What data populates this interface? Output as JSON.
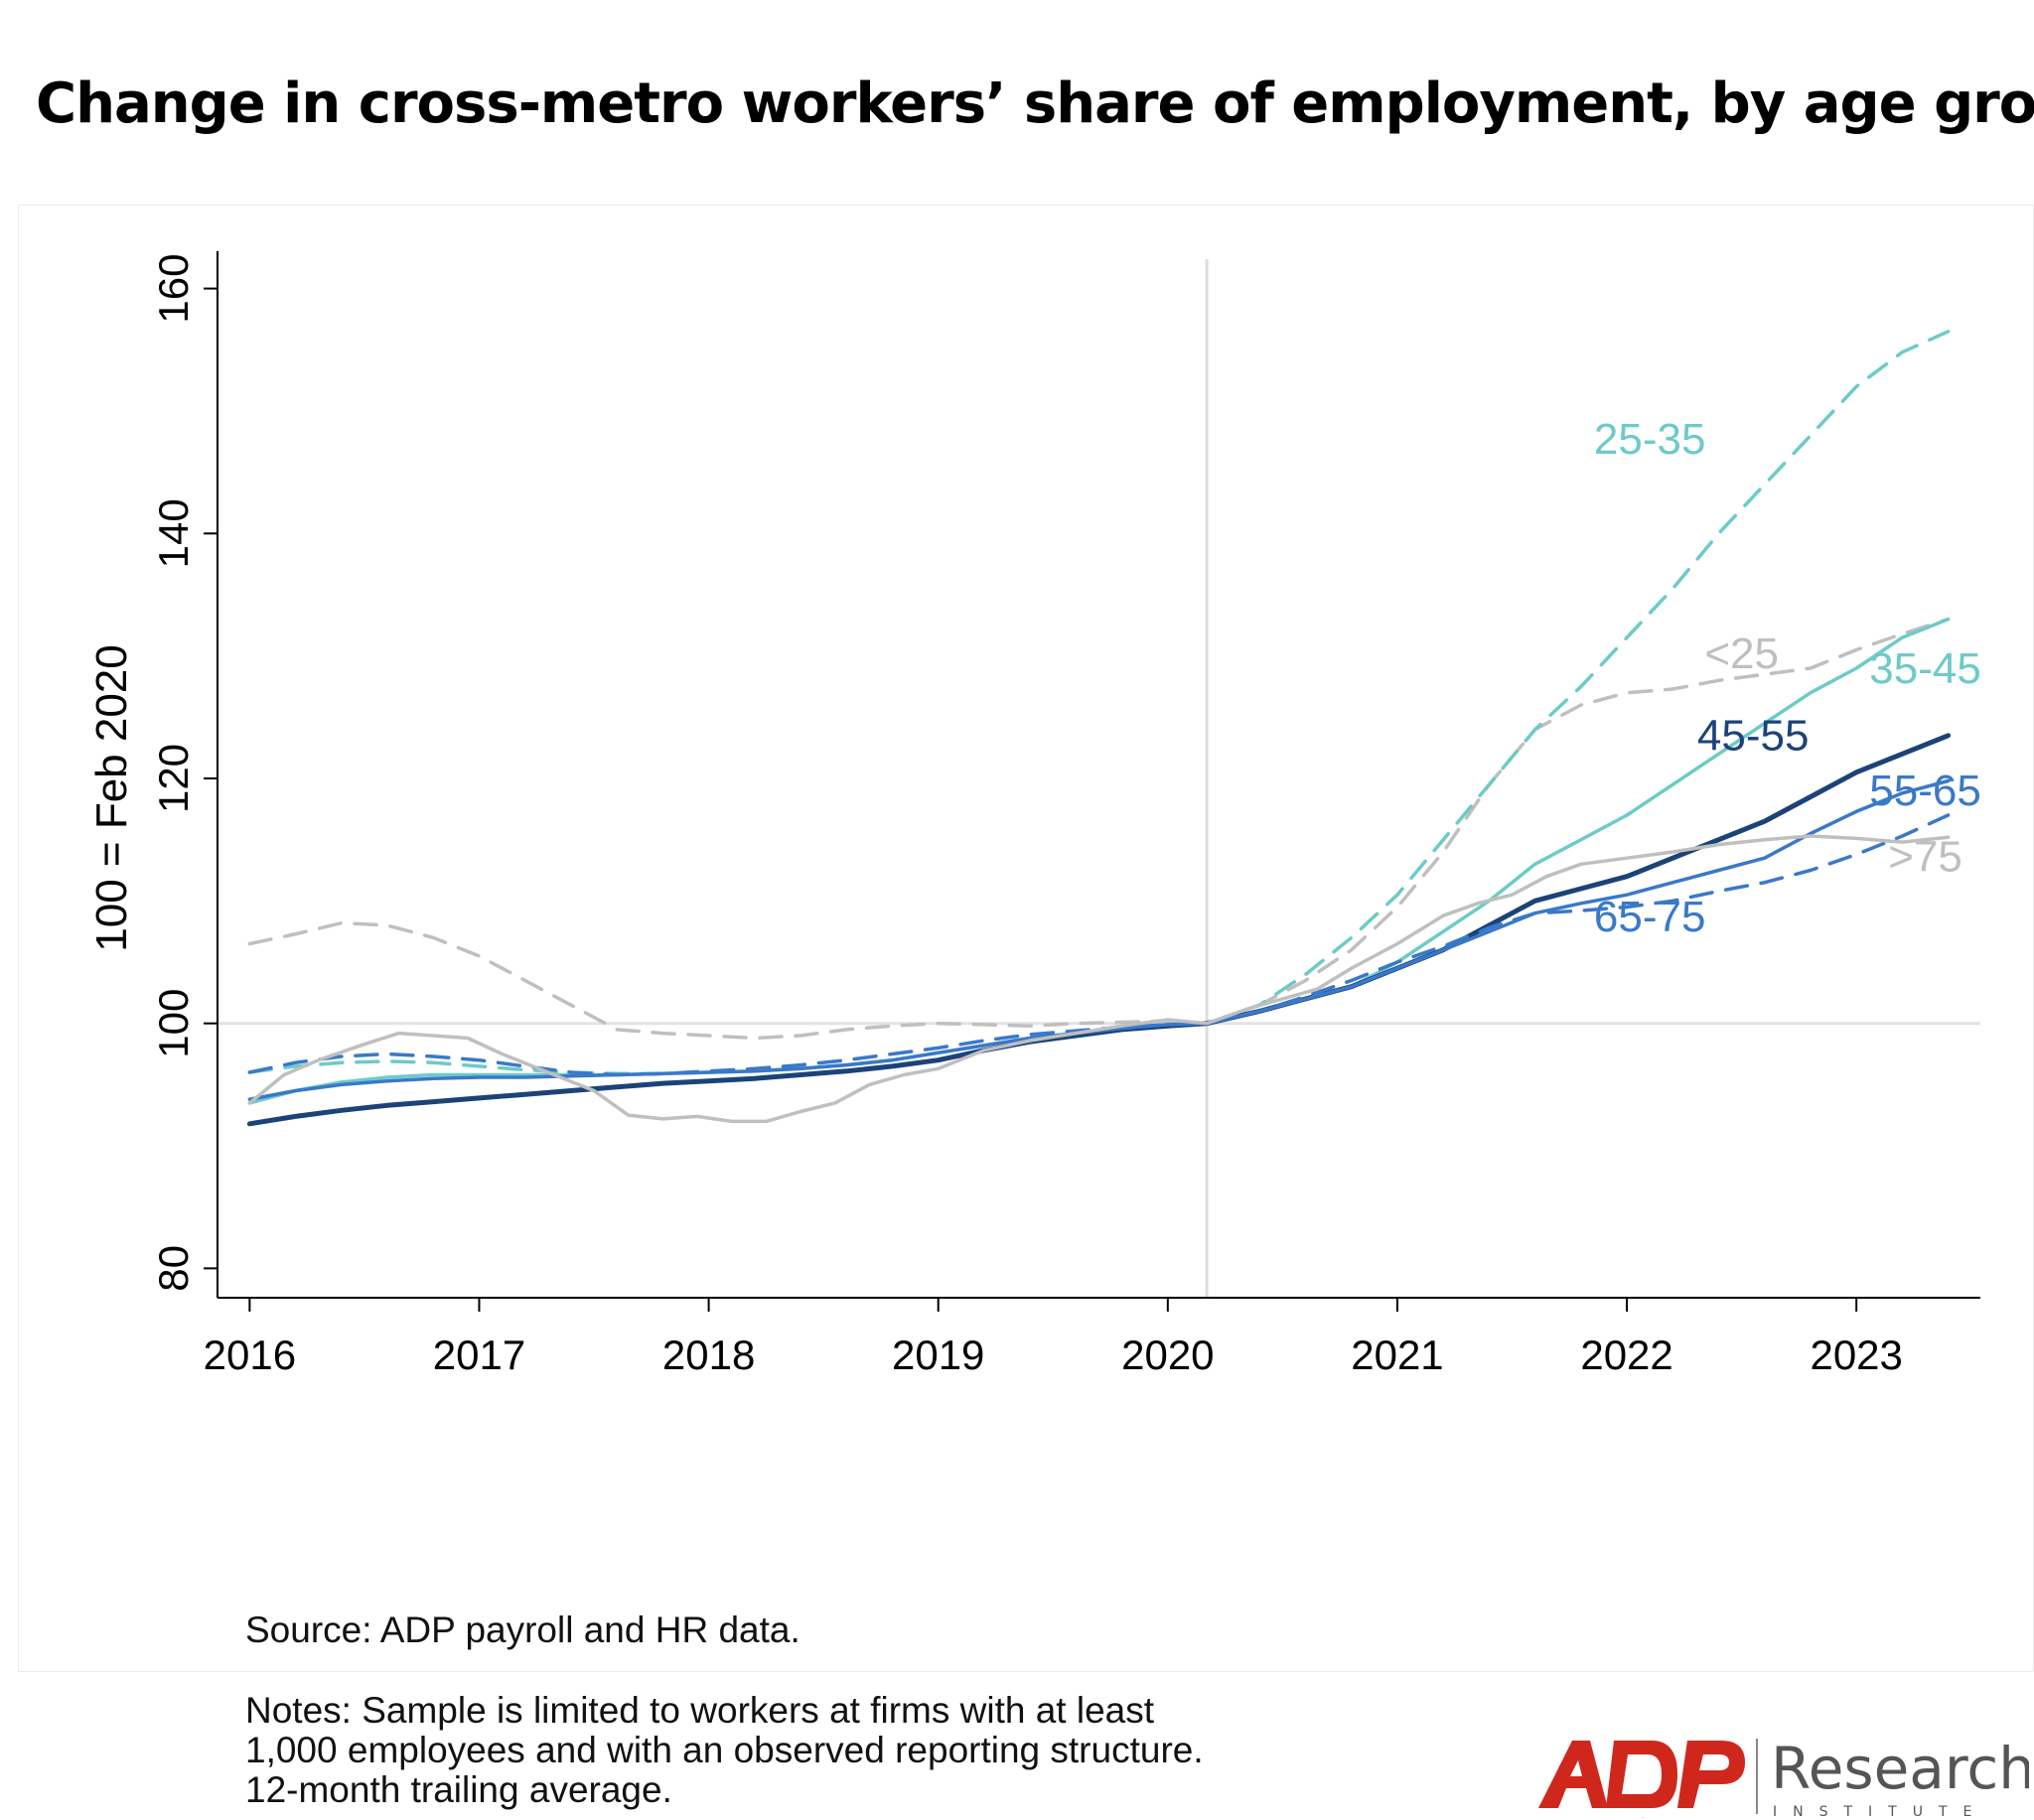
{
  "title": "Change in cross-metro workers’ share of employment, by age group",
  "chart_data": {
    "type": "line",
    "ylabel": "100 = Feb 2020",
    "xlabel": "",
    "xlim": [
      2015.86,
      2023.54
    ],
    "ylim": [
      77.6,
      162.4
    ],
    "xticks": [
      2016,
      2017,
      2018,
      2019,
      2020,
      2021,
      2022,
      2023
    ],
    "xtick_labels": [
      "2016",
      "2017",
      "2018",
      "2019",
      "2020",
      "2021",
      "2022",
      "2023"
    ],
    "yticks": [
      80,
      100,
      120,
      140,
      160
    ],
    "ytick_labels": [
      "80",
      "100",
      "120",
      "140",
      "160"
    ],
    "reference_lines": {
      "vertical_x": 2020.17,
      "horizontal_y": 100
    },
    "series": [
      {
        "name": "<25",
        "label": "<25",
        "color": "#BFBFBF",
        "dash": true,
        "label_x": 2022.5,
        "label_y": 129.0,
        "x": [
          2016.0,
          2016.2,
          2016.4,
          2016.6,
          2016.8,
          2017.0,
          2017.2,
          2017.4,
          2017.6,
          2017.8,
          2018.0,
          2018.2,
          2018.4,
          2018.6,
          2018.8,
          2019.0,
          2019.2,
          2019.4,
          2019.6,
          2019.8,
          2020.0,
          2020.17,
          2020.4,
          2020.6,
          2020.8,
          2021.0,
          2021.2,
          2021.4,
          2021.6,
          2021.8,
          2022.0,
          2022.2,
          2022.4,
          2022.6,
          2022.8,
          2023.0,
          2023.2,
          2023.4
        ],
        "y": [
          106.5,
          107.3,
          108.2,
          108.0,
          107.0,
          105.5,
          103.5,
          101.5,
          99.5,
          99.2,
          99.0,
          98.8,
          99.0,
          99.5,
          99.8,
          100.0,
          99.9,
          99.8,
          100.0,
          100.1,
          100.2,
          100.0,
          101.5,
          103.5,
          106.0,
          109.5,
          114.0,
          119.5,
          124.0,
          126.0,
          127.0,
          127.3,
          128.0,
          128.5,
          129.0,
          130.5,
          131.8,
          133.0
        ]
      },
      {
        "name": "25-35",
        "label": "25-35",
        "color": "#6CCBC8",
        "dash": true,
        "label_x": 2022.1,
        "label_y": 146.5,
        "x": [
          2016.0,
          2016.2,
          2016.4,
          2016.6,
          2016.8,
          2017.0,
          2017.2,
          2017.4,
          2017.6,
          2017.8,
          2018.0,
          2018.2,
          2018.4,
          2018.6,
          2018.8,
          2019.0,
          2019.2,
          2019.4,
          2019.6,
          2019.8,
          2020.0,
          2020.17,
          2020.4,
          2020.6,
          2020.8,
          2021.0,
          2021.2,
          2021.4,
          2021.6,
          2021.8,
          2022.0,
          2022.2,
          2022.4,
          2022.6,
          2022.8,
          2023.0,
          2023.2,
          2023.4
        ],
        "y": [
          96.0,
          96.5,
          96.8,
          96.9,
          96.8,
          96.5,
          96.2,
          96.0,
          95.9,
          95.9,
          96.0,
          96.1,
          96.3,
          96.6,
          97.0,
          97.6,
          98.2,
          98.8,
          99.2,
          99.6,
          99.9,
          100.0,
          101.5,
          104.0,
          107.0,
          110.5,
          115.0,
          119.5,
          124.0,
          127.5,
          131.5,
          135.5,
          140.0,
          144.0,
          148.0,
          152.0,
          154.8,
          156.5
        ]
      },
      {
        "name": "35-45",
        "label": "35-45",
        "color": "#6CCBC8",
        "dash": false,
        "label_x": 2023.3,
        "label_y": 127.8,
        "x": [
          2016.0,
          2016.2,
          2016.4,
          2016.6,
          2016.8,
          2017.0,
          2017.2,
          2017.4,
          2017.6,
          2017.8,
          2018.0,
          2018.2,
          2018.4,
          2018.6,
          2018.8,
          2019.0,
          2019.2,
          2019.4,
          2019.6,
          2019.8,
          2020.0,
          2020.17,
          2020.4,
          2020.6,
          2020.8,
          2021.0,
          2021.2,
          2021.4,
          2021.6,
          2021.8,
          2022.0,
          2022.2,
          2022.4,
          2022.6,
          2022.8,
          2023.0,
          2023.2,
          2023.4
        ],
        "y": [
          93.5,
          94.5,
          95.2,
          95.6,
          95.8,
          95.8,
          95.8,
          95.8,
          95.8,
          95.9,
          96.0,
          96.1,
          96.3,
          96.6,
          97.0,
          97.6,
          98.2,
          98.8,
          99.2,
          99.6,
          99.9,
          100.0,
          101.0,
          102.0,
          103.0,
          105.0,
          107.5,
          110.0,
          113.0,
          115.0,
          117.0,
          119.5,
          122.0,
          124.5,
          127.0,
          129.0,
          131.5,
          133.0
        ]
      },
      {
        "name": "45-55",
        "label": "45-55",
        "color": "#1B4378",
        "dash": false,
        "label_x": 2022.55,
        "label_y": 122.3,
        "x": [
          2016.0,
          2016.2,
          2016.4,
          2016.6,
          2016.8,
          2017.0,
          2017.2,
          2017.4,
          2017.6,
          2017.8,
          2018.0,
          2018.2,
          2018.4,
          2018.6,
          2018.8,
          2019.0,
          2019.2,
          2019.4,
          2019.6,
          2019.8,
          2020.0,
          2020.17,
          2020.4,
          2020.6,
          2020.8,
          2021.0,
          2021.2,
          2021.4,
          2021.6,
          2021.8,
          2022.0,
          2022.2,
          2022.4,
          2022.6,
          2022.8,
          2023.0,
          2023.2,
          2023.4
        ],
        "y": [
          91.8,
          92.4,
          92.9,
          93.3,
          93.6,
          93.9,
          94.2,
          94.5,
          94.8,
          95.1,
          95.3,
          95.5,
          95.8,
          96.1,
          96.5,
          97.0,
          97.8,
          98.5,
          99.0,
          99.5,
          99.8,
          100.0,
          101.0,
          102.0,
          103.0,
          104.5,
          106.0,
          108.0,
          110.0,
          111.0,
          112.0,
          113.5,
          115.0,
          116.5,
          118.5,
          120.5,
          122.0,
          123.5
        ]
      },
      {
        "name": "55-65",
        "label": "55-65",
        "color": "#3A78C9",
        "dash": false,
        "label_x": 2023.3,
        "label_y": 117.8,
        "x": [
          2016.0,
          2016.2,
          2016.4,
          2016.6,
          2016.8,
          2017.0,
          2017.2,
          2017.4,
          2017.6,
          2017.8,
          2018.0,
          2018.2,
          2018.4,
          2018.6,
          2018.8,
          2019.0,
          2019.2,
          2019.4,
          2019.6,
          2019.8,
          2020.0,
          2020.17,
          2020.4,
          2020.6,
          2020.8,
          2021.0,
          2021.2,
          2021.4,
          2021.6,
          2021.8,
          2022.0,
          2022.2,
          2022.4,
          2022.6,
          2022.8,
          2023.0,
          2023.2,
          2023.4
        ],
        "y": [
          93.8,
          94.5,
          95.0,
          95.3,
          95.5,
          95.6,
          95.6,
          95.7,
          95.8,
          95.9,
          96.0,
          96.1,
          96.3,
          96.6,
          97.0,
          97.6,
          98.2,
          98.8,
          99.2,
          99.6,
          99.9,
          100.0,
          101.0,
          102.0,
          103.0,
          104.5,
          106.0,
          107.5,
          109.0,
          109.8,
          110.5,
          111.5,
          112.5,
          113.5,
          115.5,
          117.3,
          118.8,
          119.8
        ]
      },
      {
        "name": "65-75",
        "label": "65-75",
        "color": "#3A78C9",
        "dash": true,
        "label_x": 2022.1,
        "label_y": 107.5,
        "x": [
          2016.0,
          2016.2,
          2016.4,
          2016.6,
          2016.8,
          2017.0,
          2017.2,
          2017.4,
          2017.6,
          2017.8,
          2018.0,
          2018.2,
          2018.4,
          2018.6,
          2018.8,
          2019.0,
          2019.2,
          2019.4,
          2019.6,
          2019.8,
          2020.0,
          2020.17,
          2020.4,
          2020.6,
          2020.8,
          2021.0,
          2021.2,
          2021.4,
          2021.6,
          2021.8,
          2022.0,
          2022.2,
          2022.4,
          2022.6,
          2022.8,
          2023.0,
          2023.2,
          2023.4
        ],
        "y": [
          96.0,
          96.8,
          97.3,
          97.5,
          97.3,
          97.0,
          96.5,
          96.0,
          95.8,
          95.9,
          96.1,
          96.3,
          96.6,
          97.0,
          97.5,
          98.0,
          98.6,
          99.1,
          99.4,
          99.7,
          99.9,
          100.0,
          101.0,
          102.2,
          103.5,
          105.0,
          106.3,
          107.8,
          109.0,
          109.2,
          109.5,
          110.0,
          110.8,
          111.5,
          112.5,
          113.8,
          115.3,
          117.0
        ]
      },
      {
        "name": ">75",
        "label": ">75",
        "color": "#BFBFBF",
        "dash": false,
        "label_x": 2023.3,
        "label_y": 112.4,
        "x": [
          2016.0,
          2016.15,
          2016.3,
          2016.5,
          2016.65,
          2016.8,
          2016.95,
          2017.1,
          2017.3,
          2017.5,
          2017.65,
          2017.8,
          2017.95,
          2018.1,
          2018.25,
          2018.4,
          2018.55,
          2018.7,
          2018.85,
          2019.0,
          2019.2,
          2019.4,
          2019.6,
          2019.8,
          2020.0,
          2020.17,
          2020.35,
          2020.5,
          2020.65,
          2020.8,
          2021.0,
          2021.2,
          2021.35,
          2021.5,
          2021.65,
          2021.8,
          2022.0,
          2022.2,
          2022.4,
          2022.6,
          2022.8,
          2023.0,
          2023.2,
          2023.4
        ],
        "y": [
          93.5,
          95.8,
          97.0,
          98.3,
          99.2,
          99.0,
          98.8,
          97.5,
          96.0,
          94.5,
          92.5,
          92.2,
          92.4,
          92.0,
          92.0,
          92.8,
          93.5,
          95.0,
          95.8,
          96.3,
          97.8,
          98.6,
          99.2,
          99.8,
          100.3,
          100.0,
          101.2,
          102.0,
          102.8,
          104.5,
          106.5,
          108.8,
          109.8,
          110.5,
          112.0,
          113.0,
          113.5,
          114.0,
          114.6,
          115.0,
          115.3,
          115.1,
          114.8,
          115.2
        ]
      }
    ]
  },
  "footer": {
    "source": "Source: ADP payroll and HR data.",
    "notes_lines": [
      "Notes: Sample is limited to workers at firms with at least",
      "1,000 employees and with an observed reporting structure.",
      "12-month trailing average."
    ]
  },
  "logo": {
    "brand": "ADP",
    "name": "Research",
    "sub": "INSTITUTE",
    "brand_color": "#D0271D",
    "text_color": "#555555"
  }
}
